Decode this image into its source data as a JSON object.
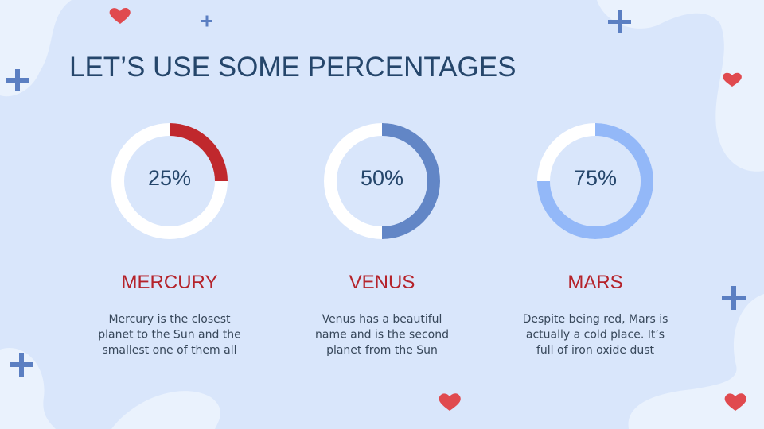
{
  "title": "LET’S USE SOME PERCENTAGES",
  "chart_data": [
    {
      "type": "donut",
      "title": "MERCURY",
      "values": [
        25
      ],
      "value_labels": [
        "25%"
      ],
      "color": "#c0282d",
      "description": [
        "Mercury is the closest",
        "planet to the Sun and the",
        "smallest one of them all"
      ]
    },
    {
      "type": "donut",
      "title": "VENUS",
      "values": [
        50
      ],
      "value_labels": [
        "50%"
      ],
      "color": "#6286c6",
      "description": [
        "Venus has a beautiful",
        "name and is the second",
        "planet from the Sun"
      ]
    },
    {
      "type": "donut",
      "title": "MARS",
      "values": [
        75
      ],
      "value_labels": [
        "75%"
      ],
      "color": "#93b8f8",
      "description": [
        "Despite being red, Mars is",
        "actually a cold place. It’s",
        "full of iron oxide dust"
      ]
    }
  ]
}
